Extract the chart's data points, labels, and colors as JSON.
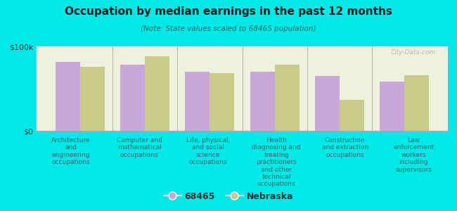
{
  "title": "Occupation by median earnings in the past 12 months",
  "subtitle": "(Note: State values scaled to 68465 population)",
  "background_color": "#00e8e8",
  "plot_bg_color": "#eef2dc",
  "categories": [
    "Architecture\nand\nengineering\noccupations",
    "Computer and\nmathematical\noccupations",
    "Life, physical,\nand social\nscience\noccupations",
    "Health\ndiagnosing and\ntreating\npractitioners\nand other\ntechnical\noccupations",
    "Construction\nand extraction\noccupations",
    "Law\nenforcement\nworkers\nincluding\nsupervisors"
  ],
  "values_68465": [
    82000,
    78000,
    70000,
    70000,
    65000,
    58000
  ],
  "values_nebraska": [
    76000,
    88000,
    68000,
    78000,
    37000,
    66000
  ],
  "color_68465": "#c8a8d8",
  "color_nebraska": "#c8cc88",
  "ylim": [
    0,
    100000
  ],
  "ytick_labels": [
    "$0",
    "$100k"
  ],
  "legend_label_68465": "68465",
  "legend_label_nebraska": "Nebraska",
  "watermark": "City-Data.com"
}
